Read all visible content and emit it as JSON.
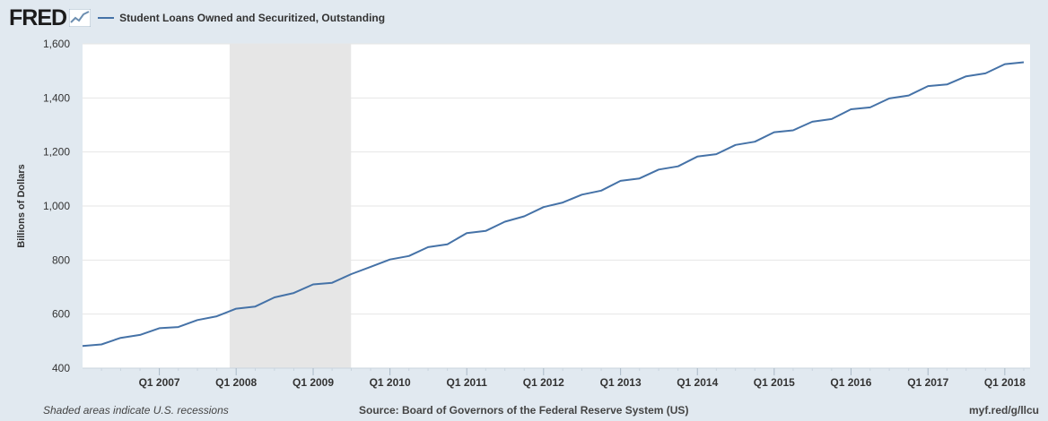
{
  "header": {
    "logo_text": "FRED",
    "series_title": "Student Loans Owned and Securitized, Outstanding"
  },
  "footer": {
    "note": "Shaded areas indicate U.S. recessions",
    "source": "Source: Board of Governors of the Federal Reserve System (US)",
    "link": "myf.red/g/llcu"
  },
  "colors": {
    "background": "#e1e9f0",
    "plot_background": "#ffffff",
    "line": "#4572a7",
    "recession_shade": "#e6e6e6",
    "gridline": "#e6e6e6"
  },
  "chart_data": {
    "type": "line",
    "title": "",
    "ylabel": "Billions of Dollars",
    "xlabel": "",
    "ylim": [
      400,
      1600
    ],
    "yticks": [
      400,
      600,
      800,
      1000,
      1200,
      1400,
      1600
    ],
    "ytick_labels": [
      "400",
      "600",
      "800",
      "1,000",
      "1,200",
      "1,400",
      "1,600"
    ],
    "xticks": [
      {
        "date": "2007-01-01",
        "label": "Q1 2007"
      },
      {
        "date": "2008-01-01",
        "label": "Q1 2008"
      },
      {
        "date": "2009-01-01",
        "label": "Q1 2009"
      },
      {
        "date": "2010-01-01",
        "label": "Q1 2010"
      },
      {
        "date": "2011-01-01",
        "label": "Q1 2011"
      },
      {
        "date": "2012-01-01",
        "label": "Q1 2012"
      },
      {
        "date": "2013-01-01",
        "label": "Q1 2013"
      },
      {
        "date": "2014-01-01",
        "label": "Q1 2014"
      },
      {
        "date": "2015-01-01",
        "label": "Q1 2015"
      },
      {
        "date": "2016-01-01",
        "label": "Q1 2016"
      },
      {
        "date": "2017-01-01",
        "label": "Q1 2017"
      },
      {
        "date": "2018-01-01",
        "label": "Q1 2018"
      }
    ],
    "recessions": [
      {
        "start": "2007-12-01",
        "end": "2009-06-30"
      }
    ],
    "grid": true,
    "series": [
      {
        "x": [
          "2006-01-01",
          "2006-04-01",
          "2006-07-01",
          "2006-10-01",
          "2007-01-01",
          "2007-04-01",
          "2007-07-01",
          "2007-10-01",
          "2008-01-01",
          "2008-04-01",
          "2008-07-01",
          "2008-10-01",
          "2009-01-01",
          "2009-04-01",
          "2009-07-01",
          "2009-10-01",
          "2010-01-01",
          "2010-04-01",
          "2010-07-01",
          "2010-10-01",
          "2011-01-01",
          "2011-04-01",
          "2011-07-01",
          "2011-10-01",
          "2012-01-01",
          "2012-04-01",
          "2012-07-01",
          "2012-10-01",
          "2013-01-01",
          "2013-04-01",
          "2013-07-01",
          "2013-10-01",
          "2014-01-01",
          "2014-04-01",
          "2014-07-01",
          "2014-10-01",
          "2015-01-01",
          "2015-04-01",
          "2015-07-01",
          "2015-10-01",
          "2016-01-01",
          "2016-04-01",
          "2016-07-01",
          "2016-10-01",
          "2017-01-01",
          "2017-04-01",
          "2017-07-01",
          "2017-10-01",
          "2018-01-01",
          "2018-04-01"
        ],
        "values": [
          482,
          488,
          512,
          523,
          548,
          552,
          578,
          592,
          620,
          628,
          662,
          678,
          710,
          716,
          748,
          775,
          802,
          815,
          848,
          858,
          900,
          908,
          942,
          962,
          996,
          1013,
          1042,
          1057,
          1093,
          1102,
          1135,
          1147,
          1183,
          1192,
          1226,
          1238,
          1273,
          1280,
          1312,
          1322,
          1358,
          1365,
          1398,
          1409,
          1444,
          1450,
          1480,
          1491,
          1525,
          1532
        ]
      }
    ]
  }
}
